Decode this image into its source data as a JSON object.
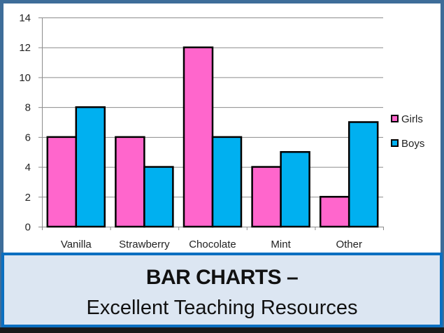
{
  "chart_data": {
    "type": "bar",
    "title": "",
    "xlabel": "",
    "ylabel": "",
    "categories": [
      "Vanilla",
      "Strawberry",
      "Chocolate",
      "Mint",
      "Other"
    ],
    "series": [
      {
        "name": "Girls",
        "color": "#ff66cc",
        "values": [
          6,
          6,
          12,
          4,
          2
        ]
      },
      {
        "name": "Boys",
        "color": "#00b0f0",
        "values": [
          8,
          4,
          6,
          5,
          7
        ]
      }
    ],
    "ylim": [
      0,
      14
    ],
    "yticks": [
      0,
      2,
      4,
      6,
      8,
      10,
      12,
      14
    ],
    "grid": true,
    "legend_position": "right"
  },
  "colors": {
    "frame": "#3e6d99",
    "banner_border": "#0b6fc0",
    "banner_fill": "#dce6f2",
    "gridline": "#8c8c8c"
  },
  "banner": {
    "title": "BAR CHARTS –",
    "subtitle": "Excellent Teaching Resources"
  }
}
